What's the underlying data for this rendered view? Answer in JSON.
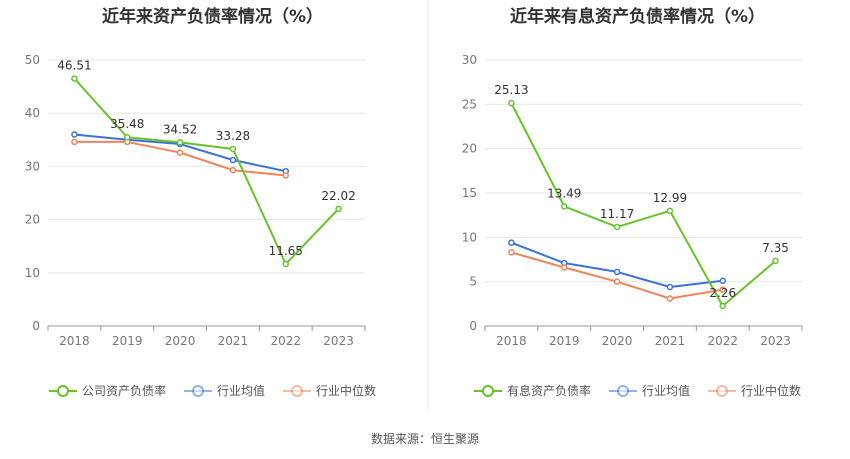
{
  "footer": "数据来源：恒生聚源",
  "chart_data": [
    {
      "type": "line",
      "title": "近年来资产负债率情况（%）",
      "categories": [
        "2018",
        "2019",
        "2020",
        "2021",
        "2022",
        "2023"
      ],
      "ylim": [
        0,
        50
      ],
      "yticks": [
        0,
        10,
        20,
        30,
        40,
        50
      ],
      "grid": true,
      "legend_position": "bottom",
      "series": [
        {
          "name": "公司资产负债率",
          "color": "#66c42b",
          "values": [
            46.51,
            35.48,
            34.52,
            33.28,
            11.65,
            22.02
          ],
          "labels": true
        },
        {
          "name": "行业均值",
          "color": "#3b73d8",
          "values": [
            36.0,
            35.0,
            34.2,
            31.2,
            29.1,
            null
          ],
          "labels": false
        },
        {
          "name": "行业中位数",
          "color": "#f0845a",
          "values": [
            34.6,
            34.6,
            32.6,
            29.3,
            28.3,
            null
          ],
          "labels": false
        }
      ]
    },
    {
      "type": "line",
      "title": "近年来有息资产负债率情况（%）",
      "categories": [
        "2018",
        "2019",
        "2020",
        "2021",
        "2022",
        "2023"
      ],
      "ylim": [
        0,
        30
      ],
      "yticks": [
        0,
        5,
        10,
        15,
        20,
        25,
        30
      ],
      "grid": true,
      "legend_position": "bottom",
      "series": [
        {
          "name": "有息资产负债率",
          "color": "#66c42b",
          "values": [
            25.13,
            13.49,
            11.17,
            12.99,
            2.26,
            7.35
          ],
          "labels": true
        },
        {
          "name": "行业均值",
          "color": "#3b73d8",
          "values": [
            9.4,
            7.1,
            6.1,
            4.4,
            5.1,
            null
          ],
          "labels": false
        },
        {
          "name": "行业中位数",
          "color": "#f0845a",
          "values": [
            8.3,
            6.6,
            5.0,
            3.1,
            4.1,
            null
          ],
          "labels": false
        }
      ]
    }
  ]
}
